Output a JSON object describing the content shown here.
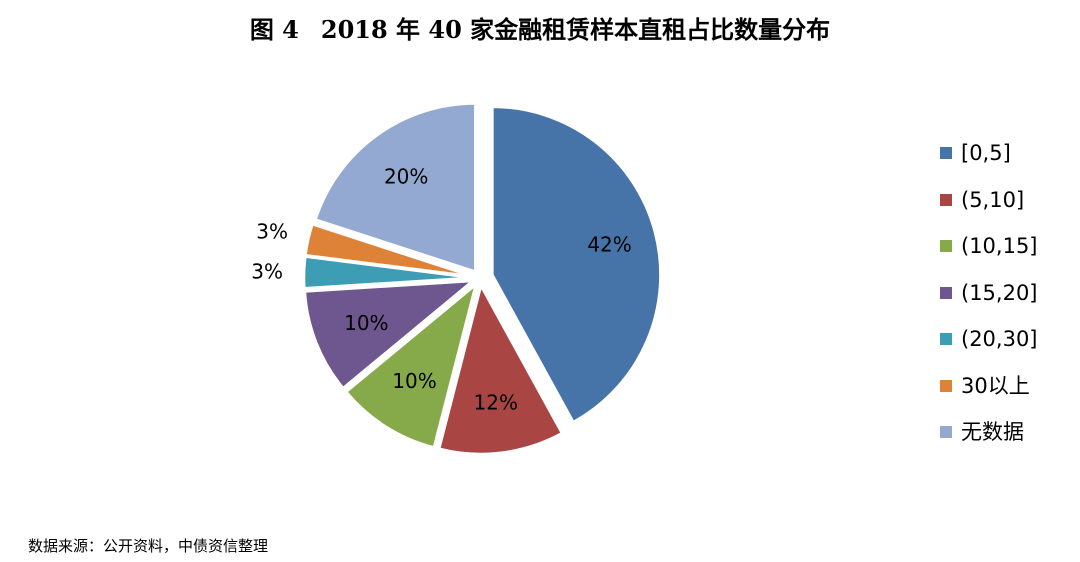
{
  "title": {
    "figure_label": "图 4",
    "text": "2018 年 40 家金融租赁样本直租占比数量分布"
  },
  "source_note": "数据来源：公开资料，中债资信整理",
  "chart_data": {
    "type": "pie",
    "title": "图 4　2018 年 40 家金融租赁样本直租占比数量分布",
    "categories": [
      "[0,5]",
      "(5,10]",
      "(10,15]",
      "(15,20]",
      "(20,30]",
      "30以上",
      "无数据"
    ],
    "values": [
      42,
      12,
      10,
      10,
      3,
      3,
      20
    ],
    "labels": [
      "42%",
      "12%",
      "10%",
      "10%",
      "3%",
      "3%",
      "20%"
    ],
    "colors": [
      "#4673A8",
      "#A94542",
      "#86A94A",
      "#6E568F",
      "#3C9DB4",
      "#DD8237",
      "#94A9D1"
    ],
    "legend_position": "right",
    "start": "12 o'clock",
    "direction": "clockwise",
    "exploded": true
  }
}
